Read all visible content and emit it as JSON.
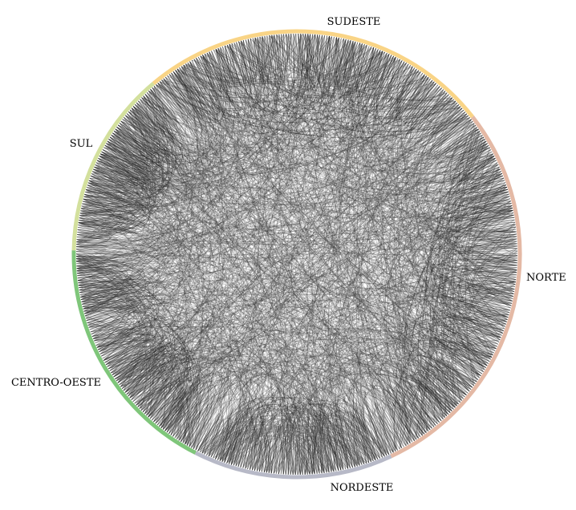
{
  "diagram": {
    "type": "chord",
    "regions": [
      {
        "name": "SUDESTE",
        "color": "#f9d486"
      },
      {
        "name": "NORTE",
        "color": "#e4b9a5"
      },
      {
        "name": "NORDESTE",
        "color": "#b7b9c7"
      },
      {
        "name": "CENTRO-OESTE",
        "color": "#7fc67a"
      },
      {
        "name": "SUL",
        "color": "#d3e09d"
      }
    ],
    "chord_color": "#000000"
  }
}
